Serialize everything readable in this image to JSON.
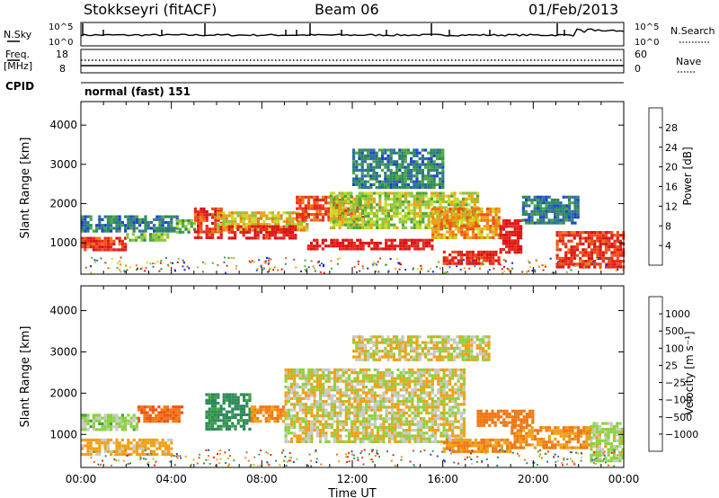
{
  "header": {
    "station": "Stokkseyri (fitACF)",
    "beam": "Beam 06",
    "date": "01/Feb/2013"
  },
  "status_panels": {
    "nsky": {
      "label": "N.Sky",
      "ticks": [
        "10^5",
        "10^0"
      ]
    },
    "nsearch": {
      "label": "N.Search",
      "ticks": [
        "10^5",
        "10^0"
      ]
    },
    "freq": {
      "label_top": "Freq.",
      "label_bottom": "[MHz]",
      "ticks": [
        "18",
        "8"
      ]
    },
    "nave": {
      "label": "Nave",
      "ticks": [
        "60",
        "0"
      ]
    },
    "cpid": {
      "label": "CPID",
      "text": "normal (fast) 151"
    }
  },
  "chart_data": [
    {
      "type": "heatmap",
      "name": "power",
      "ylabel": "Slant Range [km]",
      "xlabel": "",
      "xlim": [
        0,
        24
      ],
      "ylim": [
        200,
        4600
      ],
      "x_ticks": [
        "00:00",
        "04:00",
        "08:00",
        "12:00",
        "16:00",
        "20:00",
        "00:00"
      ],
      "y_ticks": [
        1000,
        2000,
        3000,
        4000
      ],
      "colorbar": {
        "label": "Power [dB]",
        "ticks": [
          "28",
          "24",
          "20",
          "16",
          "12",
          "8",
          "4"
        ],
        "colors": [
          "#0a1ef0",
          "#1e46c8",
          "#2d6ea0",
          "#2e8a5a",
          "#4aa83c",
          "#8cc43c",
          "#c8dc28",
          "#f0a014",
          "#f07814",
          "#f05014",
          "#e8281e",
          "#dc1414"
        ]
      },
      "regions": [
        {
          "t0": 0.0,
          "t1": 4.2,
          "r0": 1300,
          "r1": 1700,
          "v": 7
        },
        {
          "t0": 0.0,
          "t1": 2.0,
          "r0": 800,
          "r1": 1150,
          "v": 26
        },
        {
          "t0": 2.0,
          "t1": 3.8,
          "r0": 1050,
          "r1": 1250,
          "v": 13
        },
        {
          "t0": 4.2,
          "t1": 5.0,
          "r0": 1300,
          "r1": 1600,
          "v": 12
        },
        {
          "t0": 5.0,
          "t1": 6.2,
          "r0": 1100,
          "r1": 1900,
          "v": 26
        },
        {
          "t0": 6.0,
          "t1": 10.0,
          "r0": 1300,
          "r1": 1800,
          "v": 17
        },
        {
          "t0": 6.5,
          "t1": 9.5,
          "r0": 1150,
          "r1": 1450,
          "v": 28
        },
        {
          "t0": 9.5,
          "t1": 12.5,
          "r0": 1600,
          "r1": 2200,
          "v": 24
        },
        {
          "t0": 10.0,
          "t1": 15.5,
          "r0": 850,
          "r1": 1100,
          "v": 29
        },
        {
          "t0": 11.0,
          "t1": 17.5,
          "r0": 1400,
          "r1": 2300,
          "v": 15
        },
        {
          "t0": 12.0,
          "t1": 16.0,
          "r0": 2400,
          "r1": 3400,
          "v": 8
        },
        {
          "t0": 15.5,
          "t1": 18.5,
          "r0": 1100,
          "r1": 1900,
          "v": 20
        },
        {
          "t0": 16.0,
          "t1": 18.5,
          "r0": 500,
          "r1": 800,
          "v": 27
        },
        {
          "t0": 18.5,
          "t1": 19.5,
          "r0": 750,
          "r1": 1600,
          "v": 29
        },
        {
          "t0": 19.5,
          "t1": 22.0,
          "r0": 1500,
          "r1": 2200,
          "v": 7
        },
        {
          "t0": 21.0,
          "t1": 24.0,
          "r0": 350,
          "r1": 1300,
          "v": 26
        }
      ]
    },
    {
      "type": "heatmap",
      "name": "velocity",
      "ylabel": "Slant Range [km]",
      "xlabel": "Time UT",
      "xlim": [
        0,
        24
      ],
      "ylim": [
        200,
        4600
      ],
      "x_ticks": [
        "00:00",
        "04:00",
        "08:00",
        "12:00",
        "16:00",
        "20:00",
        "00:00"
      ],
      "y_ticks": [
        1000,
        2000,
        3000,
        4000
      ],
      "colorbar": {
        "label": "Velocity [m s⁻¹]",
        "ticks": [
          "1000",
          "500",
          "100",
          "25",
          "−25",
          "−100",
          "−500",
          "−1000"
        ],
        "colors": [
          "#1428c8",
          "#1e50b4",
          "#2d78a0",
          "#2e8a5a",
          "#3ca83c",
          "#8cd23c",
          "#c8c8c8",
          "#c8c8c8",
          "#f0a014",
          "#f07814",
          "#f05014",
          "#e82814",
          "#dc1414"
        ]
      },
      "regions": [
        {
          "t0": 0.0,
          "t1": 4.0,
          "r0": 500,
          "r1": 900,
          "v": -100
        },
        {
          "t0": 0.0,
          "t1": 2.5,
          "r0": 1100,
          "r1": 1500,
          "v": 80
        },
        {
          "t0": 2.5,
          "t1": 4.5,
          "r0": 1350,
          "r1": 1700,
          "v": -400
        },
        {
          "t0": 5.5,
          "t1": 7.5,
          "r0": 1100,
          "r1": 2000,
          "v": 400
        },
        {
          "t0": 7.5,
          "t1": 9.0,
          "r0": 1300,
          "r1": 1700,
          "v": -200
        },
        {
          "t0": 9.0,
          "t1": 17.0,
          "r0": 850,
          "r1": 2600,
          "v": 0
        },
        {
          "t0": 12.0,
          "t1": 18.0,
          "r0": 2800,
          "r1": 3400,
          "v": 0
        },
        {
          "t0": 16.0,
          "t1": 19.0,
          "r0": 600,
          "r1": 900,
          "v": -200
        },
        {
          "t0": 17.5,
          "t1": 20.0,
          "r0": 1200,
          "r1": 1600,
          "v": -300
        },
        {
          "t0": 19.0,
          "t1": 22.5,
          "r0": 700,
          "r1": 1200,
          "v": -200
        },
        {
          "t0": 22.5,
          "t1": 24.0,
          "r0": 350,
          "r1": 1300,
          "v": 50
        }
      ]
    }
  ]
}
